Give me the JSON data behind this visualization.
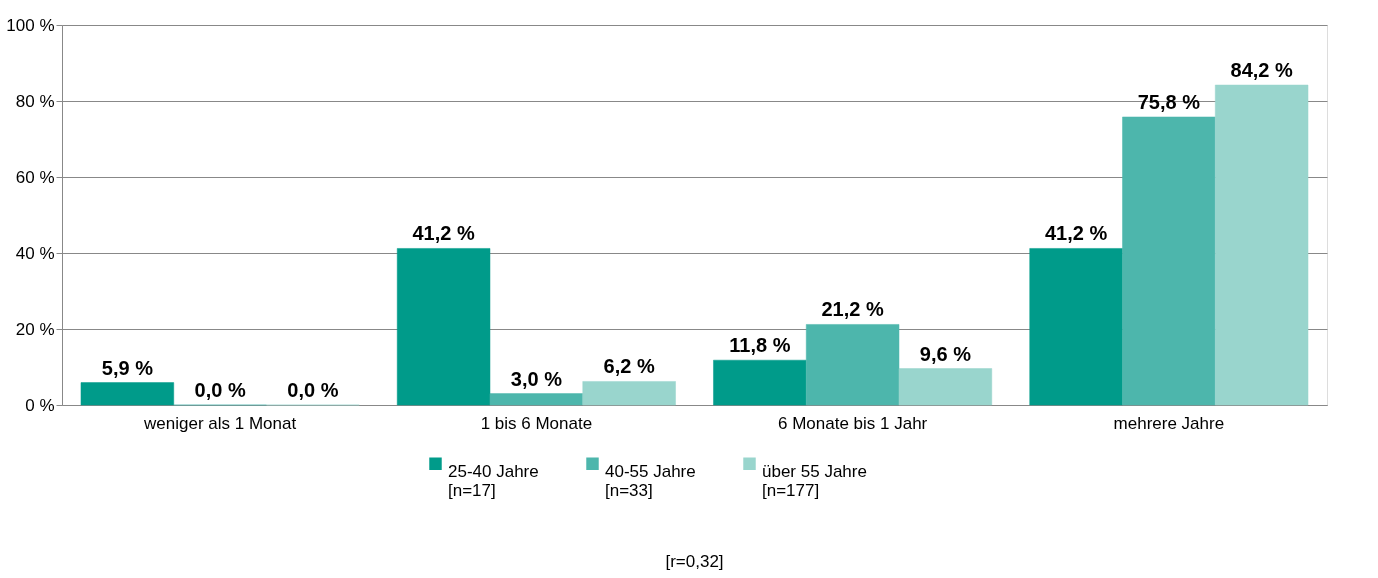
{
  "chart_data": {
    "type": "bar",
    "categories": [
      "weniger als 1 Monat",
      "1 bis 6 Monate",
      "6 Monate bis 1 Jahr",
      "mehrere Jahre"
    ],
    "series": [
      {
        "name": "25-40 Jahre\n[n=17]",
        "color": "#009b8a",
        "values": [
          5.9,
          41.2,
          11.8,
          41.2
        ],
        "value_labels": [
          "5,9 %",
          "41,2 %",
          "11,8 %",
          "41,2 %"
        ]
      },
      {
        "name": "40-55 Jahre\n[n=33]",
        "color": "#4db6ac",
        "values": [
          0.0,
          3.0,
          21.2,
          75.8
        ],
        "value_labels": [
          "0,0 %",
          "3,0 %",
          "21,2 %",
          "75,8 %"
        ]
      },
      {
        "name": "über 55 Jahre\n[n=177]",
        "color": "#99d5cd",
        "values": [
          0.0,
          6.2,
          9.6,
          84.2
        ],
        "value_labels": [
          "0,0 %",
          "6,2 %",
          "9,6 %",
          "84,2 %"
        ]
      }
    ],
    "ylim": [
      0,
      100
    ],
    "yticks": [
      {
        "value": 0,
        "label": "0 %"
      },
      {
        "value": 20,
        "label": "20 %"
      },
      {
        "value": 40,
        "label": "40 %"
      },
      {
        "value": 60,
        "label": "60 %"
      },
      {
        "value": 80,
        "label": "80 %"
      },
      {
        "value": 100,
        "label": "100 %"
      }
    ],
    "grid": "y",
    "legend": "bottom",
    "annotations": [
      "[r=0,32]"
    ]
  }
}
